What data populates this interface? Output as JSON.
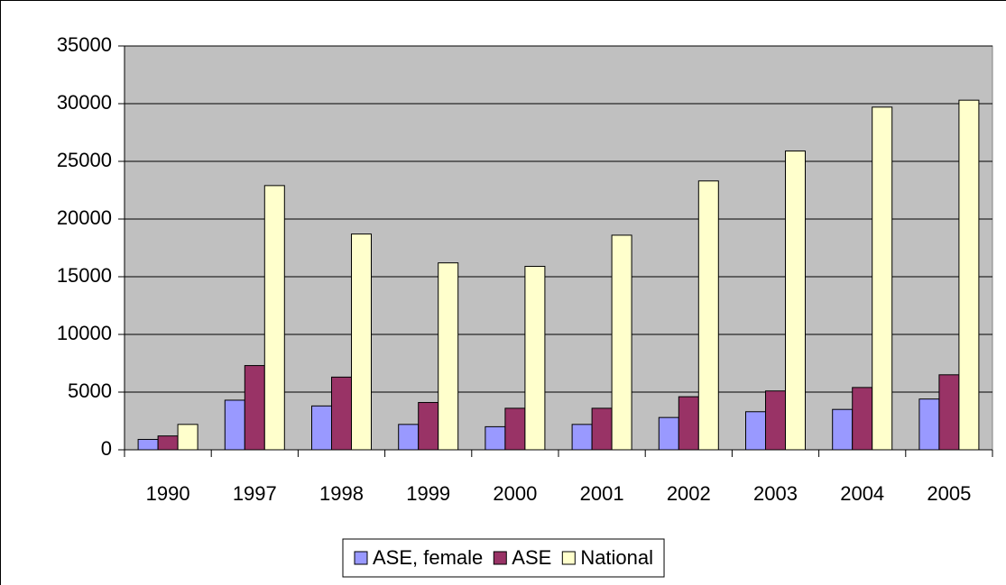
{
  "chart_data": {
    "type": "bar",
    "categories": [
      "1990",
      "1997",
      "1998",
      "1999",
      "2000",
      "2001",
      "2002",
      "2003",
      "2004",
      "2005"
    ],
    "series": [
      {
        "name": "ASE, female",
        "color": "#9999ff",
        "values": [
          900,
          4300,
          3800,
          2200,
          2000,
          2200,
          2800,
          3300,
          3500,
          4400
        ]
      },
      {
        "name": "ASE",
        "color": "#993366",
        "values": [
          1200,
          7300,
          6300,
          4100,
          3600,
          3600,
          4600,
          5100,
          5400,
          6500
        ]
      },
      {
        "name": "National",
        "color": "#ffffcc",
        "values": [
          2200,
          22900,
          18700,
          16200,
          15900,
          18600,
          23300,
          25900,
          29700,
          30300
        ]
      }
    ],
    "ylim": [
      0,
      35000
    ],
    "yticks": [
      0,
      5000,
      10000,
      15000,
      20000,
      25000,
      30000,
      35000
    ],
    "grid": true,
    "legend": "bottom",
    "plot_background": "#c0c0c0"
  }
}
